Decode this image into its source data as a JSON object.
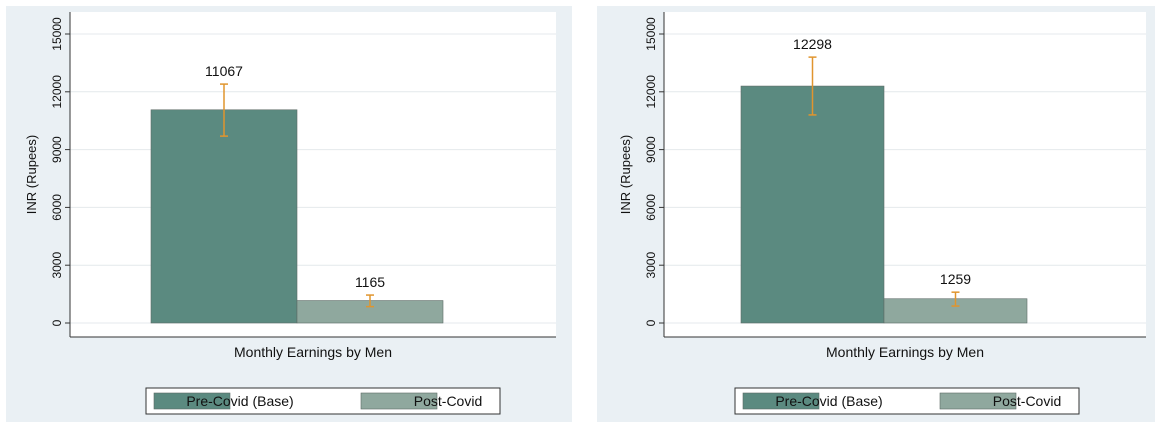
{
  "chart_data": [
    {
      "type": "bar",
      "ylabel": "INR (Rupees)",
      "xlabel": "Monthly Earnings by Men",
      "yticks": [
        0,
        3000,
        6000,
        9000,
        12000,
        15000
      ],
      "ylim": [
        0,
        15000
      ],
      "grid": true,
      "legend_position": "bottom",
      "series": [
        {
          "name": "Pre-Covid (Base)",
          "value": 11067,
          "label": "11067",
          "ci": [
            9700,
            12400
          ],
          "color": "#5b8a80"
        },
        {
          "name": "Post-Covid",
          "value": 1165,
          "label": "1165",
          "ci": [
            850,
            1450
          ],
          "color": "#8fa89e"
        }
      ]
    },
    {
      "type": "bar",
      "ylabel": "INR (Rupees)",
      "xlabel": "Monthly Earnings by Men",
      "yticks": [
        0,
        3000,
        6000,
        9000,
        12000,
        15000
      ],
      "ylim": [
        0,
        15000
      ],
      "grid": true,
      "legend_position": "bottom",
      "series": [
        {
          "name": "Pre-Covid (Base)",
          "value": 12298,
          "label": "12298",
          "ci": [
            10800,
            13800
          ],
          "color": "#5b8a80"
        },
        {
          "name": "Post-Covid",
          "value": 1259,
          "label": "1259",
          "ci": [
            880,
            1600
          ],
          "color": "#8fa89e"
        }
      ]
    }
  ],
  "colors": {
    "panel_background": "#eaf0f4",
    "plot_background": "#ffffff",
    "grid": "#e4e9ec",
    "error_bar": "#e0952e"
  }
}
